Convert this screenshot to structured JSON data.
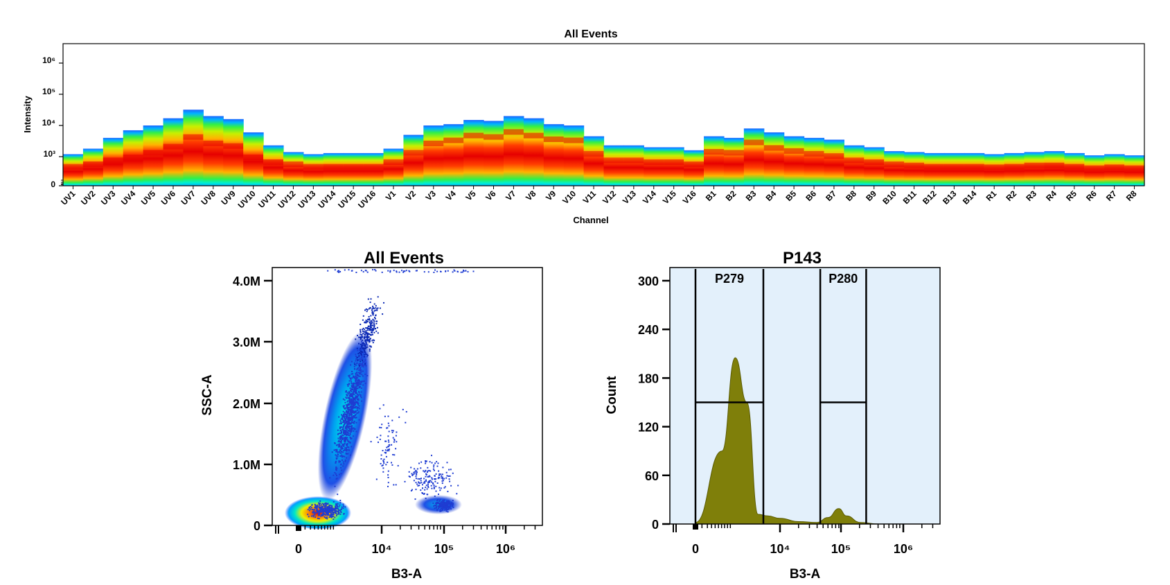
{
  "chart_data": [
    {
      "type": "heatmap",
      "title": "All Events",
      "xlabel": "Channel",
      "ylabel": "Intensity",
      "y_scale": "log",
      "y_ticks": [
        "0",
        "10³",
        "10⁴",
        "10⁵",
        "10⁶"
      ],
      "categories": [
        "UV1",
        "UV2",
        "UV3",
        "UV4",
        "UV5",
        "UV6",
        "UV7",
        "UV8",
        "UV9",
        "UV10",
        "UV11",
        "UV12",
        "UV13",
        "UV14",
        "UV15",
        "UV16",
        "V1",
        "V2",
        "V3",
        "V4",
        "V5",
        "V6",
        "V7",
        "V8",
        "V9",
        "V10",
        "V11",
        "V12",
        "V13",
        "V14",
        "V15",
        "V16",
        "B1",
        "B2",
        "B3",
        "B4",
        "B5",
        "B6",
        "B7",
        "B8",
        "B9",
        "B10",
        "B11",
        "B12",
        "B13",
        "B14",
        "R1",
        "R2",
        "R3",
        "R4",
        "R5",
        "R6",
        "R7",
        "R8"
      ],
      "upper_intensity": [
        1200,
        1800,
        4000,
        7000,
        10000,
        17000,
        32000,
        20000,
        16000,
        6000,
        2300,
        1400,
        1200,
        1300,
        1300,
        1300,
        1800,
        5000,
        10000,
        11000,
        15000,
        14000,
        20000,
        17000,
        11000,
        10000,
        4500,
        2300,
        2300,
        2000,
        2000,
        1600,
        4500,
        4000,
        8000,
        6000,
        4500,
        4000,
        3500,
        2300,
        2000,
        1500,
        1400,
        1300,
        1300,
        1300,
        1200,
        1300,
        1400,
        1500,
        1300,
        1100,
        1200,
        1100
      ],
      "peak_intensity": [
        500,
        600,
        800,
        1000,
        1400,
        2200,
        4500,
        2800,
        2300,
        1000,
        700,
        600,
        500,
        500,
        500,
        500,
        700,
        1400,
        2800,
        3500,
        5000,
        4500,
        6500,
        5000,
        3800,
        3500,
        1300,
        800,
        800,
        700,
        700,
        600,
        1500,
        1400,
        3000,
        2000,
        1600,
        1300,
        1100,
        800,
        700,
        600,
        550,
        500,
        500,
        500,
        480,
        500,
        550,
        550,
        500,
        450,
        480,
        450
      ],
      "colorscale": [
        "#1e64ff",
        "#00b4ff",
        "#00f0d2",
        "#32f046",
        "#c8f000",
        "#ffb400",
        "#ff3c00",
        "#e60000"
      ]
    },
    {
      "type": "scatter",
      "title": "All Events",
      "xlabel": "B3-A",
      "ylabel": "SSC-A",
      "x_scale": "biexponential",
      "x_ticks": [
        "0",
        "10⁴",
        "10⁵",
        "10⁶"
      ],
      "y_ticks": [
        "0",
        "1.0M",
        "2.0M",
        "3.0M",
        "4.0M"
      ],
      "ylim": [
        0,
        4200000
      ],
      "populations": [
        {
          "name": "",
          "x_center": 800,
          "y_center": 200000,
          "density": "high"
        },
        {
          "name": "",
          "x_center": 3500,
          "y_center": 1800000,
          "density": "medium"
        },
        {
          "name": "",
          "x_center": 100000,
          "y_center": 350000,
          "density": "low"
        }
      ]
    },
    {
      "type": "area",
      "title": "P143",
      "xlabel": "B3-A",
      "ylabel": "Count",
      "x_scale": "biexponential",
      "x_ticks": [
        "0",
        "10⁴",
        "10⁵",
        "10⁶"
      ],
      "y_ticks": [
        "0",
        "60",
        "120",
        "180",
        "240",
        "300"
      ],
      "ylim": [
        0,
        300
      ],
      "x": [
        0,
        800,
        1500,
        2500,
        4000,
        6000,
        10000,
        20000,
        40000,
        60000,
        90000,
        120000,
        200000,
        400000
      ],
      "values": [
        2,
        90,
        205,
        150,
        12,
        10,
        7,
        3,
        2,
        8,
        19,
        10,
        2,
        0
      ],
      "fill_color": "#7f7f0a",
      "background_color": "#e3f0fb",
      "gates": [
        {
          "name": "P279",
          "x_min": 0,
          "x_max": 5000,
          "y": 150
        },
        {
          "name": "P280",
          "x_min": 45000,
          "x_max": 250000,
          "y": 150
        }
      ]
    }
  ]
}
